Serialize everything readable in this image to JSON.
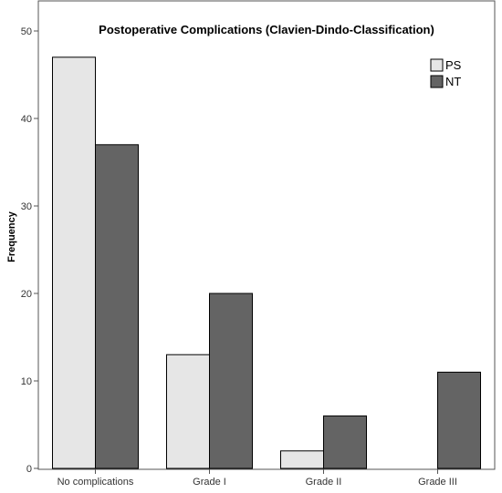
{
  "chart_data": {
    "type": "bar",
    "title": "Postoperative Complications (Clavien-Dindo-Classification)",
    "xlabel": "",
    "ylabel": "Frequency",
    "categories": [
      "No complications",
      "Grade I",
      "Grade II",
      "Grade III"
    ],
    "series": [
      {
        "name": "PS",
        "values": [
          47,
          13,
          2,
          0
        ],
        "color": "#e6e6e6"
      },
      {
        "name": "NT",
        "values": [
          37,
          20,
          6,
          11
        ],
        "color": "#646464"
      }
    ],
    "ylim": [
      0,
      50
    ],
    "yticks": [
      0,
      10,
      20,
      30,
      40,
      50
    ],
    "grid": false,
    "legend_position": "top-right"
  }
}
